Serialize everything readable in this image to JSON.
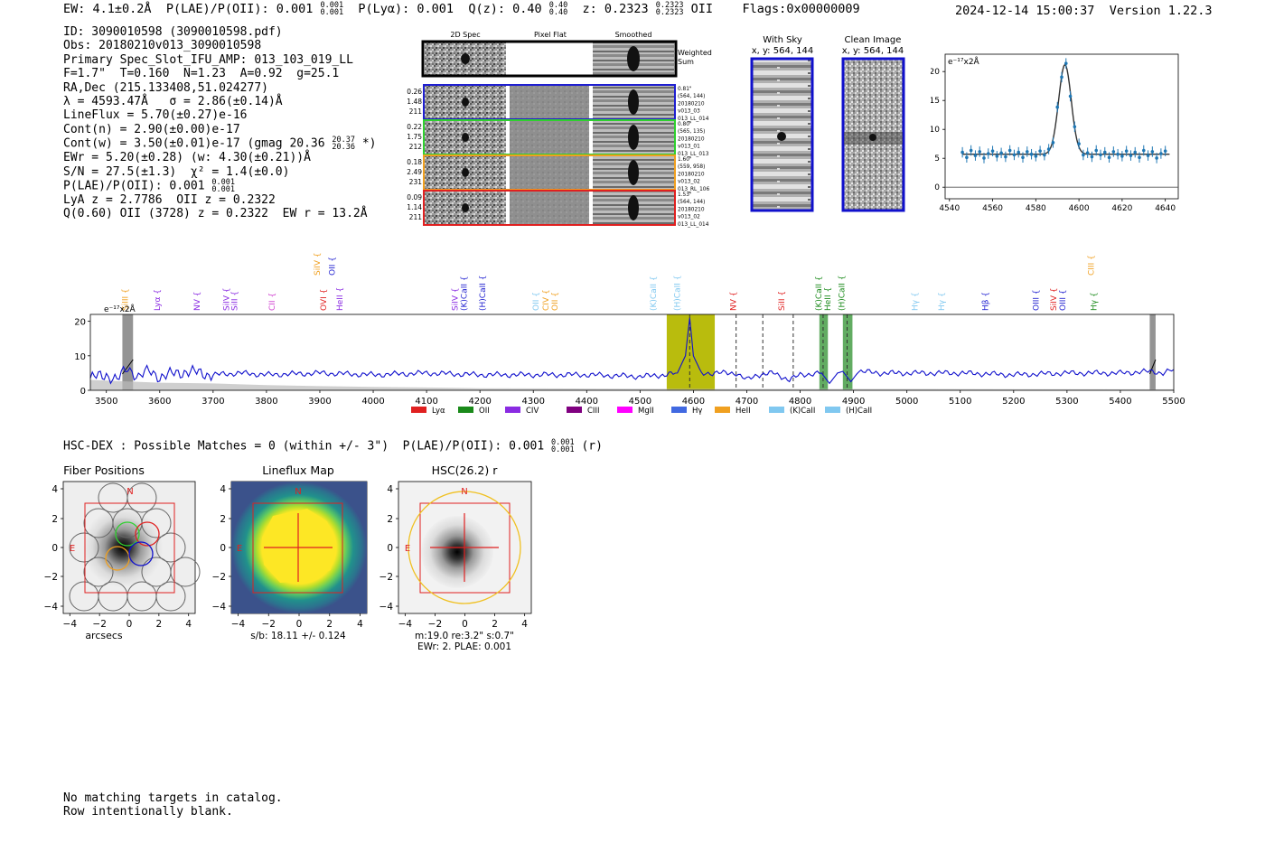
{
  "header": {
    "ew": "EW: 4.1±0.2Å",
    "plae": "P(LAE)/P(OII): 0.001",
    "plae_sup": "0.001",
    "plae_sub": "0.001",
    "plya": "P(Lyα): 0.001",
    "qz": "Q(z): 0.40",
    "qz_sup": "0.40",
    "qz_sub": "0.40",
    "z": "z: 0.2323",
    "z_sup": "0.2323",
    "z_sub": "0.2323",
    "z_line": "OII",
    "flags": "Flags:0x00000009",
    "timestamp": "2024-12-14 15:00:37",
    "version": "Version 1.22.3"
  },
  "info": {
    "id": "ID: 3090010598 (3090010598.pdf)",
    "obs": "Obs: 20180210v013_3090010598",
    "primary": "Primary Spec_Slot_IFU_AMP: 013_103_019_LL",
    "f_line": "F=1.7\"  T=0.160  N=1.23  A=0.92  g=25.1",
    "radec": "RA,Dec (215.133408,51.024277)",
    "lambda": "λ = 4593.47Å   σ = 2.86(±0.14)Å",
    "lineflux": "LineFlux = 5.70(±0.27)e-16",
    "contn": "Cont(n) = 2.90(±0.00)e-17",
    "contw": "Cont(w) = 3.50(±0.01)e-17 (gmag 20.36",
    "contw_sup": "20.37",
    "contw_sub": "20.36",
    "contw_end": "*)",
    "ewr": "EWr = 5.20(±0.28) (w: 4.30(±0.21))Å",
    "sn": "S/N = 27.5(±1.3)  χ² = 1.4(±0.0)",
    "plae": "P(LAE)/P(OII): 0.001",
    "plae_sup": "0.001",
    "plae_sub": "0.001",
    "lya": "LyA z = 2.7786  OII z = 0.2322",
    "q": "Q(0.60) OII (3728) z = 0.2322  EW r = 13.2Å"
  },
  "cutouts": {
    "col_labels": [
      "2D Spec",
      "Pixel Flat",
      "Smoothed"
    ],
    "weighted_label": "Weighted Sum",
    "rows": [
      {
        "left": [
          "0.26",
          "1.48",
          "211"
        ],
        "right": [
          "0.81\"",
          "(564, 144)",
          "20180210",
          "v013_03",
          "013_LL_014"
        ],
        "color": "#1f1fd0"
      },
      {
        "left": [
          "0.22",
          "1.75",
          "212"
        ],
        "right": [
          "0.80\"",
          "(565, 135)",
          "20180210",
          "v013_01",
          "013_LL_013"
        ],
        "color": "#2fd02f"
      },
      {
        "left": [
          "0.18",
          "2.49",
          "231"
        ],
        "right": [
          "1.60\"",
          "(559, 958)",
          "20180210",
          "v013_02",
          "013_RL_106"
        ],
        "color": "#f0a020"
      },
      {
        "left": [
          "0.09",
          "1.14",
          "211"
        ],
        "right": [
          "1.53\"",
          "(564, 144)",
          "20180210",
          "v013_02",
          "013_LL_014"
        ],
        "color": "#e02020"
      }
    ]
  },
  "sky": {
    "with_sky_title": "With Sky",
    "with_sky_coords": "x, y: 564, 144",
    "clean_title": "Clean Image",
    "clean_coords": "x, y: 564, 144"
  },
  "line_fit": {
    "unit_label": "e⁻¹⁷x2Å",
    "x_ticks": [
      4540,
      4560,
      4580,
      4600,
      4620,
      4640
    ],
    "y_ticks": [
      0,
      5,
      10,
      15,
      20
    ],
    "xlim": [
      4538,
      4646
    ],
    "ylim": [
      -2,
      23
    ]
  },
  "chart_data": {
    "type": "line",
    "title": "",
    "xlabel": "",
    "ylabel": "e⁻¹⁷x2Å",
    "xlim": [
      3470,
      5500
    ],
    "ylim": [
      0,
      22
    ],
    "x_ticks": [
      3500,
      3600,
      3700,
      3800,
      3900,
      4000,
      4100,
      4200,
      4300,
      4400,
      4500,
      4600,
      4700,
      4800,
      4900,
      5000,
      5100,
      5200,
      5300,
      5400,
      5500
    ],
    "y_ticks": [
      0,
      10,
      20
    ],
    "series": [
      {
        "name": "spectrum",
        "color": "#1010cc",
        "x": [
          3470,
          3500,
          3520,
          3540,
          3560,
          3580,
          3600,
          3650,
          3700,
          3750,
          3800,
          3900,
          4000,
          4100,
          4200,
          4300,
          4400,
          4500,
          4550,
          4570,
          4585,
          4593,
          4600,
          4615,
          4640,
          4680,
          4700,
          4720,
          4750,
          4780,
          4800,
          4840,
          4855,
          4870,
          4880,
          4895,
          4910,
          4950,
          5000,
          5100,
          5200,
          5300,
          5400,
          5460,
          5480,
          5500
        ],
        "y": [
          3.5,
          4.5,
          3.0,
          6.5,
          4.0,
          5.5,
          4.0,
          5.5,
          4.5,
          5.0,
          4.5,
          5.0,
          4.5,
          5.0,
          4.5,
          4.5,
          4.5,
          4.0,
          4.5,
          5.0,
          10.0,
          21.0,
          10.0,
          5.0,
          5.0,
          5.0,
          3.0,
          4.5,
          5.0,
          3.0,
          4.5,
          5.0,
          2.0,
          5.0,
          5.5,
          2.5,
          5.5,
          5.0,
          5.0,
          5.0,
          4.5,
          5.0,
          5.0,
          5.5,
          5.0,
          6.0
        ]
      },
      {
        "name": "sky",
        "color": "#bbbbbb",
        "x": [
          3470,
          3600,
          3700,
          3800,
          3900,
          4000,
          4100,
          4200,
          4400,
          4600,
          5000,
          5500
        ],
        "y": [
          3.0,
          2.2,
          2.0,
          1.5,
          1.2,
          1.0,
          0.8,
          0.6,
          0.5,
          0.4,
          0.4,
          0.3
        ]
      }
    ],
    "bands": [
      {
        "from": 3530,
        "to": 3550,
        "color": "#888888",
        "hatch": true
      },
      {
        "from": 4550,
        "to": 4640,
        "color": "#b5b800"
      },
      {
        "from": 4836,
        "to": 4852,
        "color": "#5aa85a"
      },
      {
        "from": 4880,
        "to": 4898,
        "color": "#5aa85a"
      },
      {
        "from": 5455,
        "to": 5466,
        "color": "#888888",
        "hatch": true
      }
    ],
    "dashed_lines": [
      4593,
      4680,
      4730,
      4787,
      4843,
      4888
    ],
    "line_labels": [
      {
        "text": "SiIII",
        "x": 3540,
        "color": "#f0a020",
        "row": "low"
      },
      {
        "text": "Lyα",
        "x": 3600,
        "color": "#8a2be2",
        "row": "low"
      },
      {
        "text": "NV",
        "x": 3675,
        "color": "#8a2be2",
        "row": "low"
      },
      {
        "text": "SiIV",
        "x": 3730,
        "color": "#8a2be2",
        "row": "low"
      },
      {
        "text": "SiII",
        "x": 3745,
        "color": "#8a2be2",
        "row": "low"
      },
      {
        "text": "CII",
        "x": 3815,
        "color": "#d040d0",
        "row": "low"
      },
      {
        "text": "SiIV",
        "x": 3900,
        "color": "#f0a020",
        "row": "high"
      },
      {
        "text": "OVI",
        "x": 3912,
        "color": "#e02020",
        "row": "low"
      },
      {
        "text": "OII",
        "x": 3928,
        "color": "#1f1fd0",
        "row": "high"
      },
      {
        "text": "HeII",
        "x": 3942,
        "color": "#8a2be2",
        "row": "low"
      },
      {
        "text": "SiIV",
        "x": 4158,
        "color": "#8a2be2",
        "row": "low"
      },
      {
        "text": "(K)CaII",
        "x": 4175,
        "color": "#1f1fd0",
        "row": "low"
      },
      {
        "text": "(H)CaII",
        "x": 4210,
        "color": "#1f1fd0",
        "row": "low"
      },
      {
        "text": "OII",
        "x": 4310,
        "color": "#80c8f0",
        "row": "low"
      },
      {
        "text": "CIV",
        "x": 4328,
        "color": "#f0a020",
        "row": "low"
      },
      {
        "text": "OII",
        "x": 4345,
        "color": "#f0a020",
        "row": "low"
      },
      {
        "text": "(K)CaII",
        "x": 4530,
        "color": "#80c8f0",
        "row": "low"
      },
      {
        "text": "(H)CaII",
        "x": 4575,
        "color": "#80c8f0",
        "row": "low"
      },
      {
        "text": "NV",
        "x": 4680,
        "color": "#e02020",
        "row": "low"
      },
      {
        "text": "SiII",
        "x": 4770,
        "color": "#e02020",
        "row": "low"
      },
      {
        "text": "(K)CaII",
        "x": 4840,
        "color": "#1a8a1a",
        "row": "low"
      },
      {
        "text": "HeII",
        "x": 4857,
        "color": "#1a8a1a",
        "row": "low"
      },
      {
        "text": "(H)CaII",
        "x": 4883,
        "color": "#1a8a1a",
        "row": "low"
      },
      {
        "text": "Hγ",
        "x": 5020,
        "color": "#80c8f0",
        "row": "low"
      },
      {
        "text": "Hγ",
        "x": 5070,
        "color": "#80c8f0",
        "row": "low"
      },
      {
        "text": "Hβ",
        "x": 5152,
        "color": "#1f1fd0",
        "row": "low"
      },
      {
        "text": "OIII",
        "x": 5247,
        "color": "#1f1fd0",
        "row": "low"
      },
      {
        "text": "SiIV",
        "x": 5280,
        "color": "#e02020",
        "row": "low"
      },
      {
        "text": "OIII",
        "x": 5297,
        "color": "#1f1fd0",
        "row": "low"
      },
      {
        "text": "CIII",
        "x": 5350,
        "color": "#f0a020",
        "row": "high"
      },
      {
        "text": "Hγ",
        "x": 5355,
        "color": "#1a8a1a",
        "row": "low"
      }
    ],
    "legend": [
      {
        "label": "Lyα",
        "color": "#e02020"
      },
      {
        "label": "OII",
        "color": "#1a8a1a"
      },
      {
        "label": "CIV",
        "color": "#8a2be2"
      },
      {
        "label": "CIII",
        "color": "#800080"
      },
      {
        "label": "MgII",
        "color": "#ff00ff"
      },
      {
        "label": "Hγ",
        "color": "#4169e1"
      },
      {
        "label": "HeII",
        "color": "#f0a020"
      },
      {
        "label": "(K)CaII",
        "color": "#80c8f0"
      },
      {
        "label": "(H)CaII",
        "color": "#80c8f0"
      }
    ]
  },
  "hsc_line": "HSC-DEX : Possible Matches = 0 (within +/- 3\")  P(LAE)/P(OII): 0.001",
  "hsc_line_sup": "0.001",
  "hsc_line_sub": "0.001",
  "hsc_line_end": "(r)",
  "stamps": [
    {
      "title": "Fiber Positions",
      "xlabel": "arcsecs",
      "sub": "",
      "sub2": ""
    },
    {
      "title": "Lineflux Map",
      "xlabel": "",
      "sub": "s/b: 18.11 +/- 0.124",
      "sub2": ""
    },
    {
      "title": "HSC(26.2) r",
      "xlabel": "",
      "sub": "m:19.0  re:3.2\"  s:0.7\"",
      "sub2": "EWr: 2. PLAE: 0.001"
    }
  ],
  "stamp_ticks": {
    "y": [
      "4",
      "2",
      "0",
      "−2",
      "−4"
    ],
    "x": [
      "−4",
      "−2",
      "0",
      "2",
      "4"
    ],
    "n": "N",
    "e": "E"
  },
  "footer": {
    "line1": "No matching targets in catalog.",
    "line2": "Row intentionally blank."
  }
}
